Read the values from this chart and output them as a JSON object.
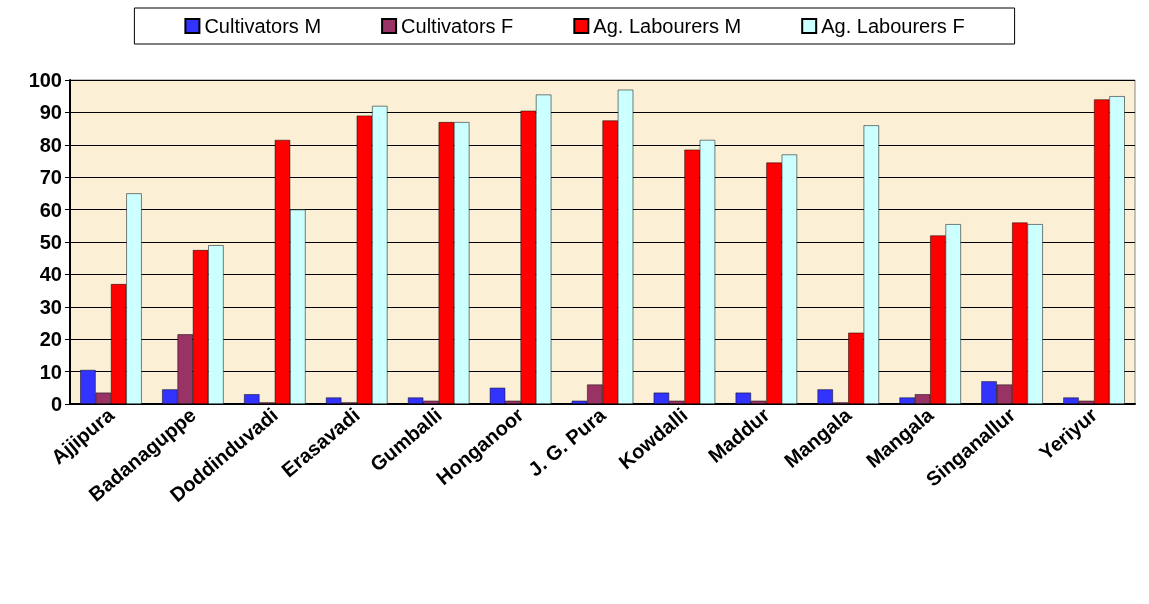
{
  "chart_data": {
    "type": "bar",
    "categories": [
      "Ajjipura",
      "Badanaguppe",
      "Doddinduvadi",
      "Erasavadi",
      "Gumballi",
      "Honganoor",
      "J. G. Pura",
      "Kowdalli",
      "Maddur",
      "Mangala",
      "Mangala",
      "Singanallur",
      "Yeriyur"
    ],
    "series": [
      {
        "name": "Cultivators M",
        "color": "#3333ff",
        "values": [
          10.5,
          4.5,
          3,
          2,
          2,
          5,
          1,
          3.5,
          3.5,
          4.5,
          2,
          7,
          2
        ]
      },
      {
        "name": "Cultivators F",
        "color": "#993366",
        "values": [
          3.5,
          21.5,
          0.5,
          0.5,
          1,
          1,
          6,
          1,
          1,
          0.5,
          3,
          6,
          1
        ]
      },
      {
        "name": "Ag. Labourers M",
        "color": "#ff0000",
        "values": [
          37,
          47.5,
          81.5,
          89,
          87,
          90.5,
          87.5,
          78.5,
          74.5,
          22,
          52,
          56,
          94
        ]
      },
      {
        "name": "Ag. Labourers F",
        "color": "#ccffff",
        "values": [
          65,
          49,
          60,
          92,
          87,
          95.5,
          97,
          81.5,
          77,
          86,
          55.5,
          55.5,
          95
        ]
      }
    ],
    "ylim": [
      0,
      100
    ],
    "yticks": [
      0,
      10,
      20,
      30,
      40,
      50,
      60,
      70,
      80,
      90,
      100
    ],
    "grid": "y",
    "legend": "top"
  }
}
